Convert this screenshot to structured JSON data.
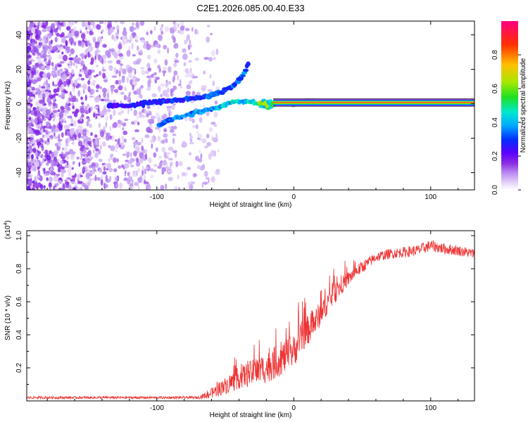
{
  "chart_data": [
    {
      "type": "heatmap",
      "title": "C2E1.2026.085.00.40.E33",
      "xlabel": "Height of straight line (km)",
      "ylabel": "Frequency (Hz)",
      "xlim": [
        -195,
        132
      ],
      "ylim": [
        -50,
        48
      ],
      "xticks": [
        -100,
        0,
        100
      ],
      "yticks": [
        -40,
        -20,
        0,
        20,
        40
      ],
      "colorbar": {
        "label": "Normalized spectral amplitude",
        "range": [
          0,
          1
        ],
        "ticks": [
          "0.0",
          "0.2",
          "0.4",
          "0.6",
          "0.8"
        ],
        "colors": [
          "#ffffff",
          "#dcc8f5",
          "#9a5ae6",
          "#6a00e6",
          "#1010ff",
          "#00b4ff",
          "#00e8c0",
          "#22e022",
          "#c8e800",
          "#ffb000",
          "#ff3000",
          "#ff0078"
        ]
      },
      "features": {
        "carrier_line": {
          "x_from": -15,
          "x_to": 132,
          "freq_hz": 0.5
        },
        "upper_branch": [
          [
            -135,
            -1
          ],
          [
            -120,
            -1
          ],
          [
            -100,
            1
          ],
          [
            -80,
            3
          ],
          [
            -65,
            4
          ],
          [
            -50,
            8
          ],
          [
            -42,
            12
          ],
          [
            -36,
            18
          ],
          [
            -33,
            24
          ]
        ],
        "lower_branch": [
          [
            -98,
            -12
          ],
          [
            -85,
            -8
          ],
          [
            -70,
            -5
          ],
          [
            -55,
            -2
          ],
          [
            -45,
            1
          ],
          [
            -30,
            1
          ],
          [
            -20,
            -2
          ],
          [
            -15,
            -1
          ]
        ]
      }
    },
    {
      "type": "line",
      "xlabel": "Height of straight line (km)",
      "ylabel": "SNR (10 * v/v)",
      "scale_label": "(x10",
      "scale_exponent": "4",
      "xlim": [
        -195,
        132
      ],
      "ylim": [
        0,
        1.03
      ],
      "xticks": [
        -100,
        0,
        100
      ],
      "yticks": [
        0.2,
        0.4,
        0.6,
        0.8,
        1.0
      ],
      "ytick_labels": [
        "0.2",
        "0.4",
        "0.6",
        "0.8",
        "1.0"
      ],
      "color": "#ee3333",
      "series": [
        {
          "name": "SNR",
          "envelope": [
            [
              -195,
              0.02
            ],
            [
              -70,
              0.02
            ],
            [
              -62,
              0.04
            ],
            [
              -50,
              0.09
            ],
            [
              -40,
              0.14
            ],
            [
              -30,
              0.17
            ],
            [
              -20,
              0.2
            ],
            [
              -10,
              0.25
            ],
            [
              0,
              0.3
            ],
            [
              5,
              0.38
            ],
            [
              15,
              0.47
            ],
            [
              25,
              0.6
            ],
            [
              35,
              0.7
            ],
            [
              45,
              0.78
            ],
            [
              55,
              0.84
            ],
            [
              60,
              0.87
            ],
            [
              70,
              0.89
            ],
            [
              80,
              0.9
            ],
            [
              90,
              0.91
            ],
            [
              100,
              0.94
            ],
            [
              110,
              0.92
            ],
            [
              120,
              0.91
            ],
            [
              132,
              0.89
            ]
          ],
          "noise": [
            [
              -195,
              0.008
            ],
            [
              -70,
              0.008
            ],
            [
              -60,
              0.03
            ],
            [
              -45,
              0.06
            ],
            [
              -30,
              0.08
            ],
            [
              -15,
              0.1
            ],
            [
              0,
              0.1
            ],
            [
              10,
              0.09
            ],
            [
              25,
              0.07
            ],
            [
              40,
              0.045
            ],
            [
              60,
              0.03
            ],
            [
              100,
              0.035
            ],
            [
              132,
              0.03
            ]
          ]
        }
      ]
    }
  ]
}
